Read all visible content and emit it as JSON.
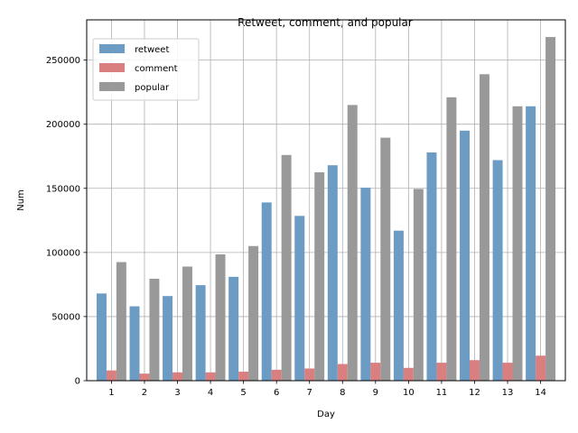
{
  "chart_data": {
    "type": "bar",
    "title": "Retweet, comment, and popular",
    "xlabel": "Day",
    "ylabel": "Num",
    "categories": [
      "1",
      "2",
      "3",
      "4",
      "5",
      "6",
      "7",
      "8",
      "9",
      "10",
      "11",
      "12",
      "13",
      "14"
    ],
    "series": [
      {
        "name": "retweet",
        "values": [
          68000,
          58000,
          66000,
          74500,
          81000,
          139000,
          128500,
          168000,
          150500,
          117000,
          178000,
          195000,
          172000,
          214000
        ]
      },
      {
        "name": "comment",
        "values": [
          8000,
          5500,
          6500,
          6500,
          7000,
          8500,
          9500,
          13000,
          14000,
          10000,
          14000,
          16000,
          14000,
          19500
        ]
      },
      {
        "name": "popular",
        "values": [
          92500,
          79500,
          89000,
          98500,
          105000,
          176000,
          162500,
          215000,
          189500,
          149500,
          221000,
          239000,
          214000,
          268000
        ]
      }
    ],
    "colors": {
      "retweet": "#6c9bc4",
      "comment": "#d97f7f",
      "popular": "#999999"
    },
    "ylim": [
      0,
      281400
    ],
    "yticks": [
      0,
      50000,
      100000,
      150000,
      200000,
      250000
    ],
    "grid": true,
    "legend_position": "top-left"
  }
}
